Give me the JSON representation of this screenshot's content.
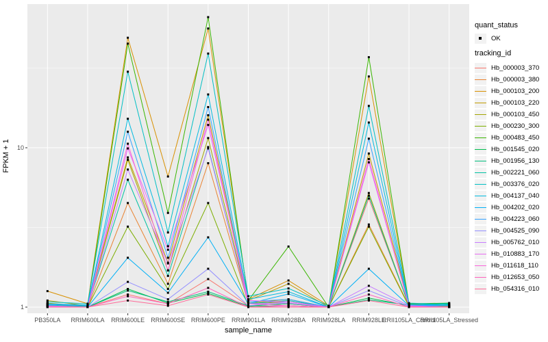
{
  "chart_data": {
    "type": "line",
    "title": "",
    "xlabel": "sample_name",
    "ylabel": "FPKM + 1",
    "y_scale": "log10",
    "y_ticks": [
      1,
      10
    ],
    "y_minor_ticks": [
      3.162,
      31.62
    ],
    "ylim": [
      1,
      79
    ],
    "grid": true,
    "legend_position": "right",
    "point_shape": "filled-square",
    "point_color": "#000000",
    "categories": [
      "PB350LA",
      "RRIM600LA",
      "RRIM600LE",
      "RRIM600SE",
      "RRIM600PE",
      "RRIM901LA",
      "RRIM928BA",
      "RRIM928LA",
      "RRIM928LE",
      "RRII105LA_Control",
      "RRII105LA_Stressed"
    ],
    "series": [
      {
        "name": "Hb_000003_370",
        "color": "#F8766D",
        "values": [
          1.05,
          1.0,
          1.2,
          1.05,
          1.5,
          1.02,
          1.05,
          1.0,
          4.8,
          1.03,
          1.01
        ]
      },
      {
        "name": "Hb_000003_380",
        "color": "#EA8331",
        "values": [
          1.02,
          1.0,
          4.5,
          1.4,
          8.0,
          1.05,
          1.08,
          1.0,
          3.3,
          1.02,
          1.0
        ]
      },
      {
        "name": "Hb_000103_200",
        "color": "#D89000",
        "values": [
          1.26,
          1.05,
          49.0,
          6.6,
          56.0,
          1.12,
          1.47,
          1.02,
          28.0,
          1.05,
          1.02
        ]
      },
      {
        "name": "Hb_000103_220",
        "color": "#C09B00",
        "values": [
          1.1,
          1.02,
          8.7,
          1.9,
          16.0,
          1.1,
          1.4,
          1.0,
          9.2,
          1.04,
          1.01
        ]
      },
      {
        "name": "Hb_000103_450",
        "color": "#A3A500",
        "values": [
          1.06,
          1.01,
          8.4,
          1.7,
          11.5,
          1.06,
          1.12,
          1.0,
          5.2,
          1.02,
          1.0
        ]
      },
      {
        "name": "Hb_000230_300",
        "color": "#7CAE00",
        "values": [
          1.02,
          1.0,
          3.2,
          1.3,
          4.5,
          1.02,
          1.05,
          1.0,
          3.2,
          1.01,
          1.0
        ]
      },
      {
        "name": "Hb_000483_450",
        "color": "#39B600",
        "values": [
          1.05,
          1.02,
          45.0,
          3.9,
          66.0,
          1.1,
          2.4,
          1.0,
          37.0,
          1.05,
          1.06
        ]
      },
      {
        "name": "Hb_001545_020",
        "color": "#00BB4E",
        "values": [
          1.01,
          1.0,
          1.3,
          1.06,
          1.22,
          1.01,
          1.02,
          1.0,
          1.14,
          1.02,
          1.05
        ]
      },
      {
        "name": "Hb_001956_130",
        "color": "#00BF7D",
        "values": [
          1.02,
          1.0,
          1.27,
          1.08,
          1.25,
          1.02,
          1.05,
          1.0,
          1.11,
          1.03,
          1.06
        ]
      },
      {
        "name": "Hb_002221_060",
        "color": "#00C1A3",
        "values": [
          1.03,
          1.01,
          6.3,
          1.57,
          10.1,
          1.05,
          1.1,
          1.0,
          5.0,
          1.02,
          1.03
        ]
      },
      {
        "name": "Hb_003376_020",
        "color": "#00BFC4",
        "values": [
          1.08,
          1.05,
          30.0,
          2.94,
          39.0,
          1.17,
          1.31,
          1.02,
          18.3,
          1.06,
          1.04
        ]
      },
      {
        "name": "Hb_004137_040",
        "color": "#00BAE0",
        "values": [
          1.05,
          1.03,
          15.2,
          2.41,
          21.6,
          1.12,
          1.25,
          1.0,
          14.4,
          1.04,
          1.03
        ]
      },
      {
        "name": "Hb_004202_020",
        "color": "#00B0F6",
        "values": [
          1.02,
          1.0,
          2.04,
          1.23,
          2.74,
          1.05,
          1.21,
          1.0,
          1.74,
          1.02,
          1.02
        ]
      },
      {
        "name": "Hb_004223_060",
        "color": "#35A2FF",
        "values": [
          1.04,
          1.02,
          12.6,
          2.04,
          18.0,
          1.08,
          1.12,
          1.0,
          11.4,
          1.03,
          1.02
        ]
      },
      {
        "name": "Hb_004525_090",
        "color": "#9590FF",
        "values": [
          1.01,
          1.0,
          1.44,
          1.12,
          1.74,
          1.02,
          1.08,
          1.0,
          1.27,
          1.01,
          1.0
        ]
      },
      {
        "name": "Hb_005762_010",
        "color": "#C77CFF",
        "values": [
          1.02,
          1.0,
          7.3,
          1.88,
          9.9,
          1.05,
          1.06,
          1.0,
          1.36,
          1.02,
          1.0
        ]
      },
      {
        "name": "Hb_010883_170",
        "color": "#E76BF3",
        "values": [
          1.01,
          1.0,
          9.9,
          2.29,
          13.9,
          1.1,
          1.08,
          1.0,
          8.1,
          1.02,
          1.0
        ]
      },
      {
        "name": "Hb_011618_110",
        "color": "#FA62DB",
        "values": [
          1.01,
          1.0,
          10.6,
          1.7,
          15.0,
          1.05,
          1.02,
          1.0,
          8.5,
          1.01,
          1.0
        ]
      },
      {
        "name": "Hb_012653_050",
        "color": "#FF62BC",
        "values": [
          1.0,
          1.0,
          1.17,
          1.05,
          1.32,
          1.0,
          1.02,
          1.0,
          1.2,
          1.0,
          1.0
        ]
      },
      {
        "name": "Hb_054316_010",
        "color": "#FF6A98",
        "values": [
          1.0,
          1.0,
          1.1,
          1.02,
          1.2,
          1.0,
          1.0,
          1.0,
          1.1,
          1.0,
          1.0
        ]
      }
    ]
  },
  "legend": {
    "quant_status_title": "quant_status",
    "quant_status_value": "OK",
    "tracking_id_title": "tracking_id"
  },
  "colors": {
    "panel_bg": "#EBEBEB",
    "grid": "#FFFFFF",
    "axis_text": "#4D4D4D",
    "tick_mark": "#333333",
    "legend_key_bg": "#F2F2F2",
    "point": "#000000"
  }
}
